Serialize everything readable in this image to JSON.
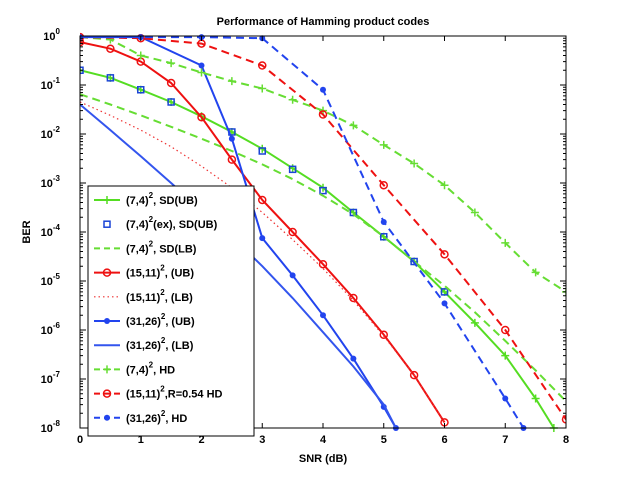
{
  "chart_data": {
    "type": "line",
    "title": "Performance of Hamming product codes",
    "xlabel": "SNR (dB)",
    "ylabel": "BER",
    "xlim": [
      0,
      8
    ],
    "ylim_log10": [
      -8,
      0
    ],
    "y_scale": "log",
    "x_ticks": [
      "0",
      "1",
      "2",
      "3",
      "4",
      "5",
      "6",
      "7",
      "8"
    ],
    "y_tick_base": "10",
    "y_tick_exponents": [
      "0",
      "-1",
      "-2",
      "-3",
      "-4",
      "-5",
      "-6",
      "-7",
      "-8"
    ],
    "grid": false,
    "legend_position": "bottom-left",
    "series": [
      {
        "name": "(7,4)², SD(UB)",
        "legend": {
          "base": "(7,4)",
          "sup": "2",
          "rest": ", SD(UB)"
        },
        "color": "#55dd22",
        "dash": "solid",
        "marker": "plus",
        "x": [
          0,
          0.5,
          1,
          1.5,
          2,
          2.5,
          3,
          3.5,
          4,
          4.5,
          5,
          5.5,
          6,
          6.5,
          7,
          7.5,
          7.8
        ],
        "y": [
          0.2,
          0.14,
          0.08,
          0.045,
          0.023,
          0.011,
          0.005,
          0.002,
          0.0008,
          0.00025,
          8e-05,
          2.5e-05,
          6e-06,
          1.4e-06,
          3e-07,
          4e-08,
          1e-08
        ]
      },
      {
        "name": "(7,4)²(ex), SD(UB)",
        "legend": {
          "base": "(7,4)",
          "sup": "2",
          "rest": "(ex), SD(UB)"
        },
        "color": "#1a44d6",
        "dash": "none",
        "marker": "square",
        "x": [
          0,
          0.5,
          1,
          1.5,
          2.5,
          3,
          3.5,
          4,
          4.5,
          5,
          5.5,
          6
        ],
        "y": [
          0.2,
          0.14,
          0.08,
          0.045,
          0.011,
          0.0045,
          0.0019,
          0.0007,
          0.00025,
          8e-05,
          2.5e-05,
          6e-06
        ]
      },
      {
        "name": "(7,4)², SD(LB)",
        "legend": {
          "base": "(7,4)",
          "sup": "2",
          "rest": ", SD(LB)"
        },
        "color": "#66dd33",
        "dash": "dashed",
        "marker": "none",
        "x": [
          0,
          0.5,
          1,
          1.5,
          2,
          2.5,
          3,
          3.5,
          4,
          4.5,
          5,
          5.5,
          6,
          6.5,
          7,
          7.5,
          8
        ],
        "y": [
          0.065,
          0.04,
          0.024,
          0.014,
          0.008,
          0.0045,
          0.0024,
          0.0012,
          0.00055,
          0.00023,
          8e-05,
          2.5e-05,
          8e-06,
          2.3e-06,
          6e-07,
          1.5e-07,
          3.5e-08
        ]
      },
      {
        "name": "(15,11)², (UB)",
        "legend": {
          "base": "(15,11)",
          "sup": "2",
          "rest": ", (UB)"
        },
        "color": "#ee1111",
        "dash": "solid",
        "marker": "circle",
        "x": [
          0,
          0.5,
          1,
          1.5,
          2,
          2.5,
          3,
          3.5,
          4,
          4.5,
          5,
          5.5,
          6
        ],
        "y": [
          0.75,
          0.55,
          0.3,
          0.11,
          0.022,
          0.003,
          0.00045,
          0.0001,
          2.2e-05,
          4.5e-06,
          8e-07,
          1.2e-07,
          1.3e-08
        ]
      },
      {
        "name": "(15,11)², (LB)",
        "legend": {
          "base": "(15,11)",
          "sup": "2",
          "rest": ", (LB)"
        },
        "color": "#ee3333",
        "dash": "dotted",
        "marker": "none",
        "x": [
          0,
          0.5,
          1,
          1.5,
          2,
          2.5,
          3,
          3.5,
          4,
          4.5,
          5,
          5.5,
          6
        ],
        "y": [
          0.045,
          0.024,
          0.012,
          0.0055,
          0.0022,
          0.0008,
          0.00025,
          7e-05,
          1.8e-05,
          4e-06,
          7.5e-07,
          1.2e-07,
          1.3e-08
        ]
      },
      {
        "name": "(31,26)², (UB)",
        "legend": {
          "base": "(31,26)",
          "sup": "2",
          "rest": ", (UB)"
        },
        "color": "#2244ee",
        "dash": "solid",
        "marker": "dot",
        "x": [
          0,
          1,
          2,
          2.5,
          3,
          3.5,
          4,
          4.5,
          5,
          5.2
        ],
        "y": [
          0.95,
          0.95,
          0.25,
          0.008,
          7.5e-05,
          1.3e-05,
          2e-06,
          2.6e-07,
          2.7e-08,
          1e-08
        ]
      },
      {
        "name": "(31,26)², (LB)",
        "legend": {
          "base": "(31,26)",
          "sup": "2",
          "rest": ", (LB)"
        },
        "color": "#3355ee",
        "dash": "solid",
        "marker": "none",
        "x": [
          0,
          0.5,
          1,
          1.5,
          2,
          2.5,
          3,
          3.5,
          4,
          4.5,
          5,
          5.2
        ],
        "y": [
          0.04,
          0.012,
          0.0035,
          0.001,
          0.00028,
          8e-05,
          2e-05,
          4.5e-06,
          9e-07,
          1.8e-07,
          3e-08,
          1e-08
        ]
      },
      {
        "name": "(7,4)², HD",
        "legend": {
          "base": "(7,4)",
          "sup": "2",
          "rest": ", HD"
        },
        "color": "#66dd33",
        "dash": "dashed",
        "marker": "plus",
        "x": [
          0,
          0.5,
          1,
          1.5,
          2,
          2.5,
          3,
          3.5,
          4,
          4.5,
          5,
          5.5,
          6,
          6.5,
          7,
          7.5,
          8
        ],
        "y": [
          0.95,
          0.85,
          0.4,
          0.28,
          0.18,
          0.12,
          0.085,
          0.05,
          0.03,
          0.015,
          0.006,
          0.0025,
          0.0009,
          0.00025,
          6e-05,
          1.5e-05,
          6e-06
        ]
      },
      {
        "name": "(15,11)²,R=0.54 HD",
        "legend": {
          "base": "(15,11)",
          "sup": "2",
          "rest": ",R=0.54 HD"
        },
        "color": "#ee1111",
        "dash": "dashed",
        "marker": "circle",
        "x": [
          0,
          1,
          2,
          3,
          4,
          5,
          6,
          7,
          8
        ],
        "y": [
          0.95,
          0.9,
          0.7,
          0.25,
          0.025,
          0.0009,
          3.5e-05,
          1e-06,
          1.5e-08
        ]
      },
      {
        "name": "(31,26)², HD",
        "legend": {
          "base": "(31,26)",
          "sup": "2",
          "rest": ", HD"
        },
        "color": "#2244ee",
        "dash": "dashed",
        "marker": "dot",
        "x": [
          0,
          1,
          2,
          3,
          4,
          5,
          6,
          7,
          7.3
        ],
        "y": [
          0.95,
          0.95,
          0.95,
          0.9,
          0.08,
          0.00016,
          3.5e-06,
          4e-08,
          1e-08
        ]
      }
    ]
  }
}
